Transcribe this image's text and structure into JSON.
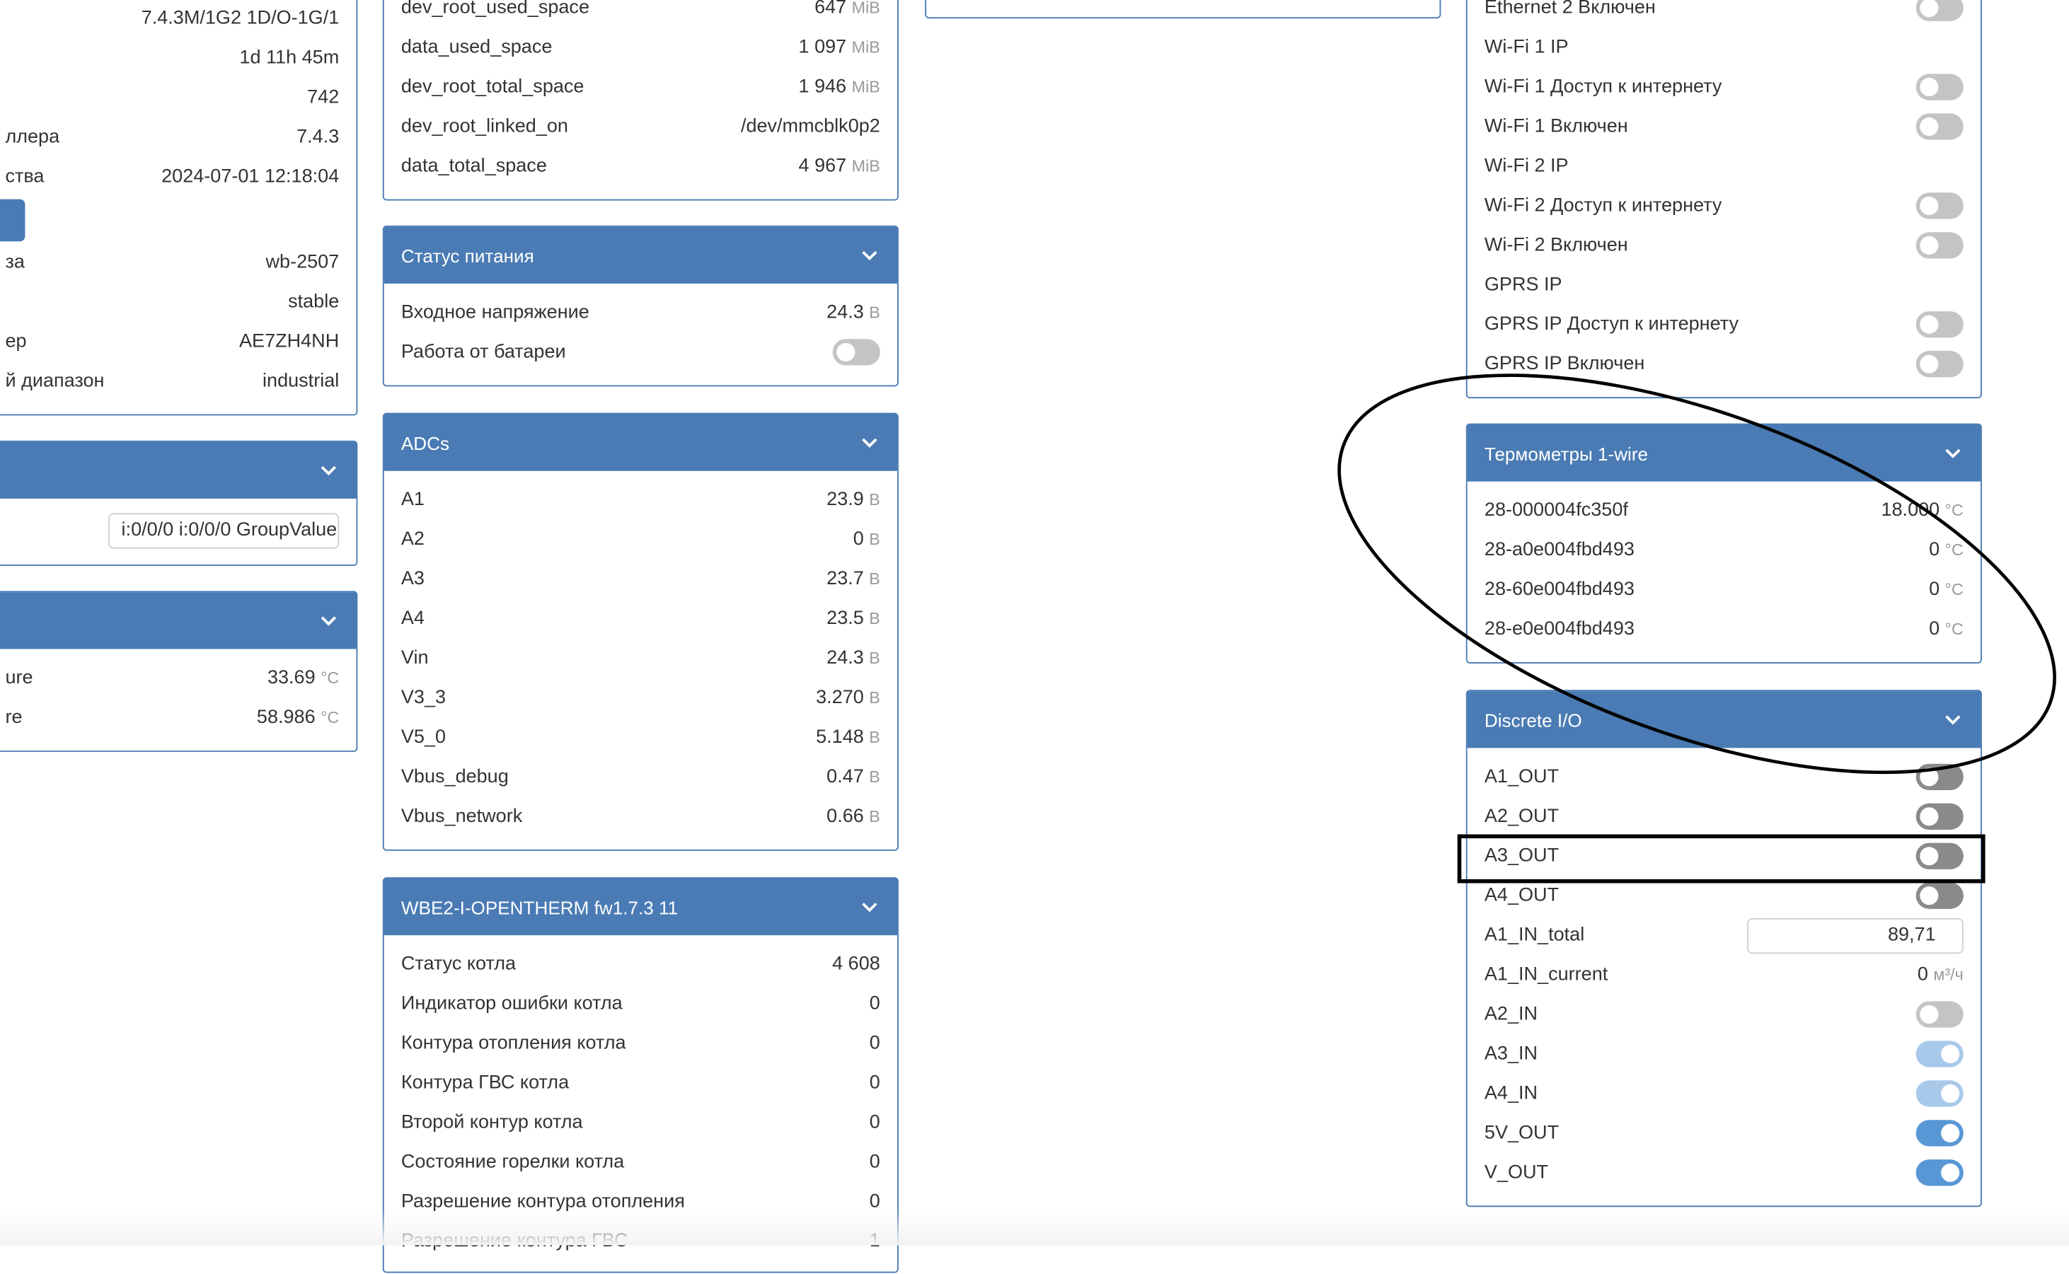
{
  "colors": {
    "accent": "#4a7bb4",
    "toggle_off_light": "#c4c4c4",
    "toggle_off_dark": "#8a8a8a",
    "toggle_on": "#5897d5",
    "toggle_on_readonly": "#a9c9ea",
    "unit": "#999999"
  },
  "panels": [
    {
      "id": "system-info",
      "rows": [
        {
          "label": "",
          "value": "7.4.3M/1G2 1D/O-1G/1"
        },
        {
          "label": "",
          "value": "1d 11h 45m"
        },
        {
          "label": "",
          "value": "742"
        },
        {
          "label": "ллера",
          "value": "7.4.3"
        },
        {
          "label": "ства",
          "value": "2024-07-01 12:18:04"
        },
        {
          "button": "update-button"
        },
        {
          "label": "за",
          "value": "wb-2507"
        },
        {
          "label": "",
          "value": "stable"
        },
        {
          "label": "ер",
          "value": "AE7ZH4NH"
        },
        {
          "label": "й диапазон",
          "value": "industrial"
        }
      ]
    },
    {
      "id": "knx",
      "title": "",
      "rows": [
        {
          "label": "",
          "input": "i:0/0/0 i:0/0/0 GroupValue"
        }
      ]
    },
    {
      "id": "temperatures",
      "title": "",
      "rows": [
        {
          "label": "ure",
          "value": "33.69",
          "unit": "°C"
        },
        {
          "label": "re",
          "value": "58.986",
          "unit": "°C"
        }
      ]
    },
    {
      "id": "storage",
      "rows": [
        {
          "label": "dev_root_used_space",
          "value": "647",
          "unit": "MiB"
        },
        {
          "label": "data_used_space",
          "value": "1 097",
          "unit": "MiB"
        },
        {
          "label": "dev_root_total_space",
          "value": "1 946",
          "unit": "MiB"
        },
        {
          "label": "dev_root_linked_on",
          "value": "/dev/mmcblk0p2"
        },
        {
          "label": "data_total_space",
          "value": "4 967",
          "unit": "MiB"
        }
      ]
    },
    {
      "id": "power-status",
      "title": "Статус питания",
      "rows": [
        {
          "label": "Входное напряжение",
          "value": "24.3",
          "unit": "В"
        },
        {
          "label": "Работа от батареи",
          "toggle": "off-light"
        }
      ]
    },
    {
      "id": "adcs",
      "title": "ADCs",
      "rows": [
        {
          "label": "A1",
          "value": "23.9",
          "unit": "В"
        },
        {
          "label": "A2",
          "value": "0",
          "unit": "В"
        },
        {
          "label": "A3",
          "value": "23.7",
          "unit": "В"
        },
        {
          "label": "A4",
          "value": "23.5",
          "unit": "В"
        },
        {
          "label": "Vin",
          "value": "24.3",
          "unit": "В"
        },
        {
          "label": "V3_3",
          "value": "3.270",
          "unit": "В"
        },
        {
          "label": "V5_0",
          "value": "5.148",
          "unit": "В"
        },
        {
          "label": "Vbus_debug",
          "value": "0.47",
          "unit": "В"
        },
        {
          "label": "Vbus_network",
          "value": "0.66",
          "unit": "В"
        }
      ]
    },
    {
      "id": "opentherm",
      "title": "WBE2-I-OPENTHERM fw1.7.3 11",
      "rows": [
        {
          "label": "Статус котла",
          "value": "4 608"
        },
        {
          "label": "Индикатор ошибки котла",
          "value": "0"
        },
        {
          "label": "Контура отопления котла",
          "value": "0"
        },
        {
          "label": "Контура ГВС котла",
          "value": "0"
        },
        {
          "label": "Второй контур котла",
          "value": "0"
        },
        {
          "label": "Состояние горелки котла",
          "value": "0"
        },
        {
          "label": "Разрешение контура отопления",
          "value": "0"
        },
        {
          "label": "Разрешение контура ГВС",
          "value": "1"
        }
      ]
    },
    {
      "id": "empty-panel",
      "rows": []
    },
    {
      "id": "network",
      "rows": [
        {
          "label": "Ethernet 2 Включен",
          "toggle": "off-light"
        },
        {
          "label": "Wi-Fi 1 IP",
          "value": ""
        },
        {
          "label": "Wi-Fi 1 Доступ к интернету",
          "toggle": "off-light"
        },
        {
          "label": "Wi-Fi 1 Включен",
          "toggle": "off-light"
        },
        {
          "label": "Wi-Fi 2 IP",
          "value": ""
        },
        {
          "label": "Wi-Fi 2 Доступ к интернету",
          "toggle": "off-light"
        },
        {
          "label": "Wi-Fi 2 Включен",
          "toggle": "off-light"
        },
        {
          "label": "GPRS IP",
          "value": ""
        },
        {
          "label": "GPRS IP Доступ к интернету",
          "toggle": "off-light"
        },
        {
          "label": "GPRS IP Включен",
          "toggle": "off-light"
        }
      ]
    },
    {
      "id": "onewire",
      "title": "Термометры 1-wire",
      "rows": [
        {
          "label": "28-000004fc350f",
          "value": "18.000",
          "unit": "°C"
        },
        {
          "label": "28-a0e004fbd493",
          "value": "0",
          "unit": "°C"
        },
        {
          "label": "28-60e004fbd493",
          "value": "0",
          "unit": "°C"
        },
        {
          "label": "28-e0e004fbd493",
          "value": "0",
          "unit": "°C"
        }
      ]
    },
    {
      "id": "discrete-io",
      "title": "Discrete I/O",
      "rows": [
        {
          "label": "A1_OUT",
          "toggle": "off-dark"
        },
        {
          "label": "A2_OUT",
          "toggle": "off-dark"
        },
        {
          "label": "A3_OUT",
          "toggle": "off-dark"
        },
        {
          "label": "A4_OUT",
          "toggle": "off-dark"
        },
        {
          "label": "A1_IN_total",
          "input": "89,71"
        },
        {
          "label": "A1_IN_current",
          "value": "0",
          "unit": "м³/ч"
        },
        {
          "label": "A2_IN",
          "toggle": "off-light"
        },
        {
          "label": "A3_IN",
          "toggle": "on-readonly"
        },
        {
          "label": "A4_IN",
          "toggle": "on-readonly"
        },
        {
          "label": "5V_OUT",
          "toggle": "on"
        },
        {
          "label": "V_OUT",
          "toggle": "on"
        }
      ]
    }
  ],
  "annotations": {
    "ellipse_target": "onewire",
    "rectangle_target": "A3_OUT"
  }
}
